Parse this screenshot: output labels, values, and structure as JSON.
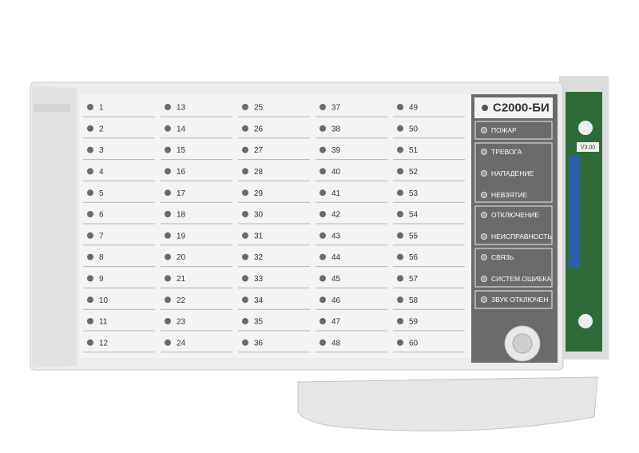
{
  "device": {
    "title": "С2000-БИ",
    "board_version": "V3.00",
    "indicator_columns": [
      [
        1,
        2,
        3,
        4,
        5,
        6,
        7,
        8,
        9,
        10,
        11,
        12
      ],
      [
        13,
        14,
        15,
        16,
        17,
        18,
        19,
        20,
        21,
        22,
        23,
        24
      ],
      [
        25,
        26,
        27,
        28,
        29,
        30,
        31,
        32,
        33,
        34,
        35,
        36
      ],
      [
        37,
        38,
        39,
        40,
        41,
        42,
        43,
        44,
        45,
        46,
        47,
        48
      ],
      [
        49,
        50,
        51,
        52,
        53,
        54,
        55,
        56,
        57,
        58,
        59,
        60
      ]
    ],
    "status_groups": [
      [
        "ПОЖАР"
      ],
      [
        "ТРЕВОГА",
        "НАПАДЕНИЕ",
        "НЕВЗЯТИЕ"
      ],
      [
        "ОТКЛЮЧЕНИЕ",
        "НЕИСПРАВНОСТЬ"
      ],
      [
        "СВЯЗЬ",
        "СИСТЕМ.ОШИБКА"
      ],
      [
        "ЗВУК ОТКЛЮЧЕН"
      ]
    ]
  }
}
